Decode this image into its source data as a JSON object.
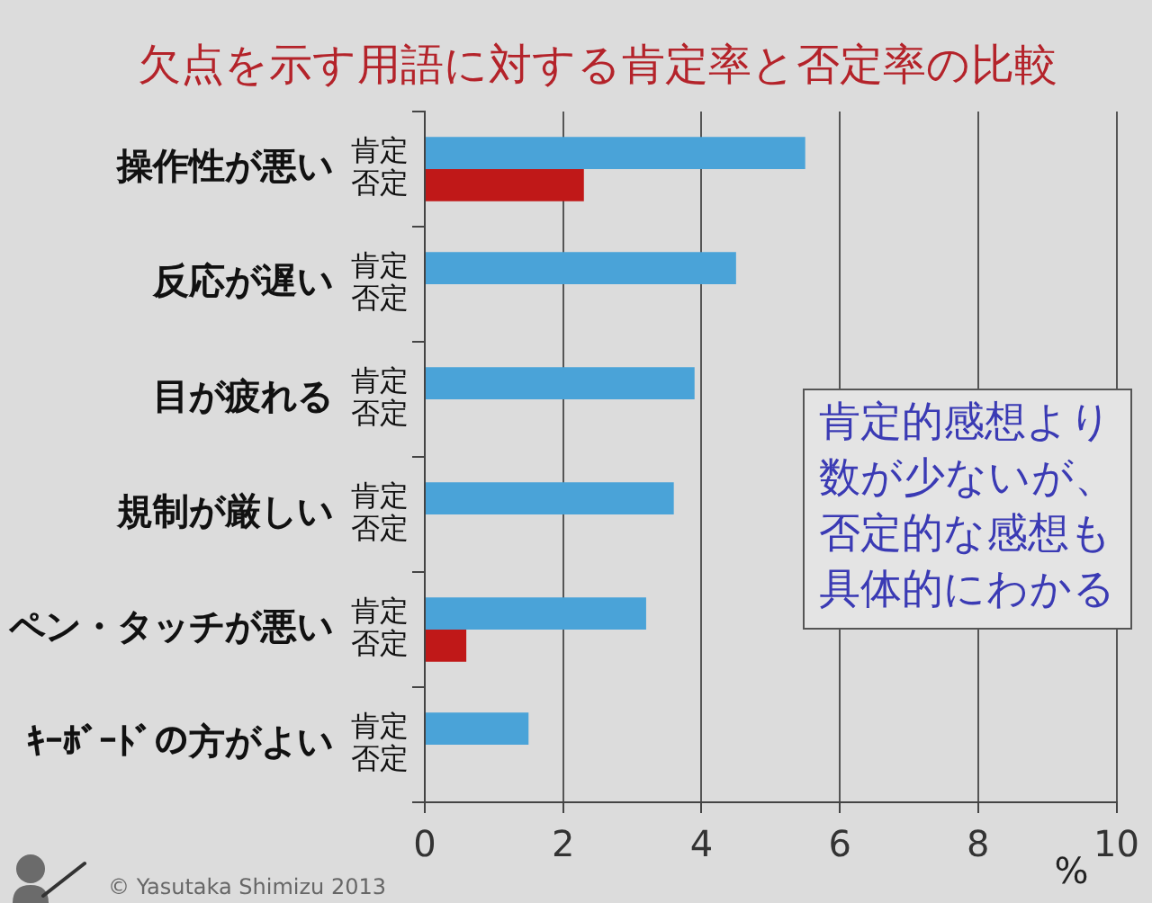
{
  "chart_data": {
    "type": "bar",
    "orientation": "horizontal",
    "title": "欠点を示す用語に対する肯定率と否定率の比較",
    "xlabel": "%",
    "categories": [
      "操作性が悪い",
      "反応が遅い",
      "目が疲れる",
      "規制が厳しい",
      "ペン・タッチが悪い",
      "ｷｰﾎﾞｰﾄﾞの方がよい"
    ],
    "series": [
      {
        "name": "肯定",
        "color": "#4aa3d8",
        "values": [
          5.5,
          4.5,
          3.9,
          3.6,
          3.2,
          1.5
        ]
      },
      {
        "name": "否定",
        "color": "#c01818",
        "values": [
          2.3,
          0,
          0,
          0,
          0.6,
          0
        ]
      }
    ],
    "xlim": [
      0,
      10
    ],
    "xticks": [
      0,
      2,
      4,
      6,
      8,
      10
    ],
    "grid": "x",
    "annotations": [
      "肯定的感想より数が少ないが、否定的な感想も具体的にわかる",
      "© Yasutaka Shimizu 2013"
    ]
  }
}
